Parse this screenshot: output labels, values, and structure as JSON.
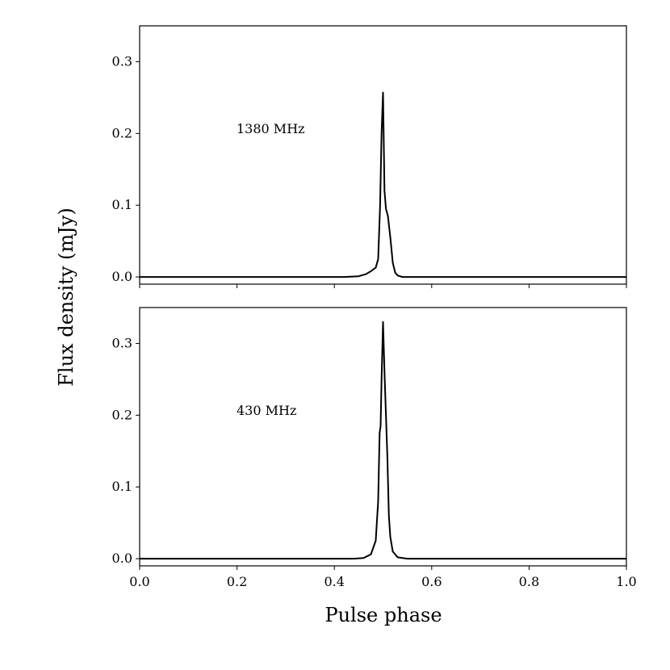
{
  "chart_data": [
    {
      "type": "line",
      "panel": "top",
      "annotation": "1380 MHz",
      "xlim": [
        0.0,
        1.0
      ],
      "ylim": [
        -0.01,
        0.35
      ],
      "xticks": [
        "0.0",
        "0.2",
        "0.4",
        "0.6",
        "0.8",
        "1.0"
      ],
      "xtick_labels_visible": false,
      "yticks": [
        "0.0",
        "0.1",
        "0.2",
        "0.3"
      ],
      "series": [
        {
          "x": [
            0.0,
            0.3,
            0.42,
            0.45,
            0.465,
            0.475,
            0.485,
            0.49,
            0.494,
            0.497,
            0.5,
            0.503,
            0.506,
            0.51,
            0.515,
            0.52,
            0.525,
            0.53,
            0.54,
            0.56,
            0.7,
            1.0
          ],
          "y": [
            0.0,
            0.0,
            0.0,
            0.001,
            0.004,
            0.008,
            0.013,
            0.025,
            0.1,
            0.2,
            0.257,
            0.12,
            0.095,
            0.085,
            0.055,
            0.02,
            0.006,
            0.002,
            0.0,
            0.0,
            0.0,
            0.0
          ]
        }
      ]
    },
    {
      "type": "line",
      "panel": "bottom",
      "annotation": "430 MHz",
      "xlim": [
        0.0,
        1.0
      ],
      "ylim": [
        -0.01,
        0.35
      ],
      "xticks": [
        "0.0",
        "0.2",
        "0.4",
        "0.6",
        "0.8",
        "1.0"
      ],
      "xtick_labels_visible": true,
      "yticks": [
        "0.0",
        "0.1",
        "0.2",
        "0.3"
      ],
      "series": [
        {
          "x": [
            0.0,
            0.3,
            0.44,
            0.46,
            0.475,
            0.485,
            0.49,
            0.493,
            0.495,
            0.497,
            0.5,
            0.503,
            0.506,
            0.509,
            0.512,
            0.515,
            0.52,
            0.53,
            0.55,
            0.7,
            1.0
          ],
          "y": [
            0.0,
            0.0,
            0.0,
            0.001,
            0.006,
            0.025,
            0.08,
            0.175,
            0.185,
            0.25,
            0.33,
            0.26,
            0.2,
            0.14,
            0.06,
            0.03,
            0.01,
            0.002,
            0.0,
            0.0,
            0.0
          ]
        }
      ]
    }
  ],
  "xlabel": "Pulse phase",
  "ylabel": "Flux density (mJy)"
}
